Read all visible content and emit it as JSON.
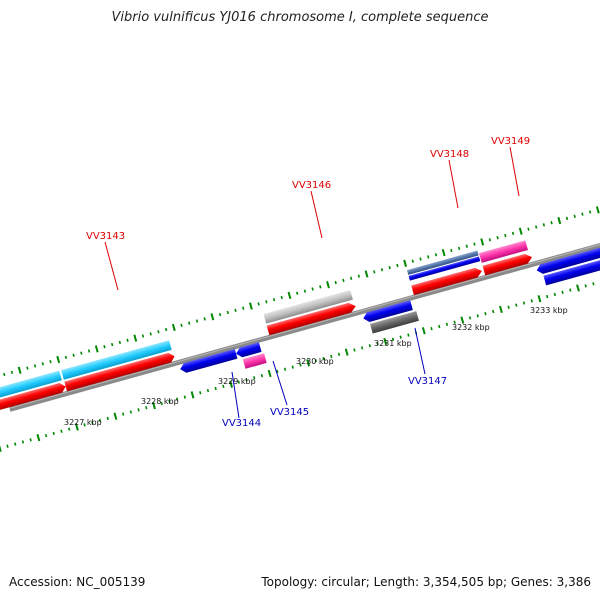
{
  "title": "Vibrio vulnificus YJ016 chromosome I, complete sequence",
  "footer": {
    "accession": "Accession: NC_005139",
    "summary": "Topology: circular; Length: 3,354,505 bp; Genes: 3,386"
  },
  "colors": {
    "backbone": "#8a8a8a",
    "forward_cds": "#ff0000",
    "reverse_cds": "#0000ee",
    "cyan_feature": "#22ccff",
    "pink_feature": "#ff33aa",
    "grey_feature": "#c0c0c0",
    "dark_grey_feature": "#666666",
    "steel_feature": "#5577aa",
    "ticks": "#008800",
    "label_forward": "#dd0000",
    "label_reverse": "#0000bb"
  },
  "scale_labels": [
    {
      "name": "tick-label-3227",
      "text": "3227 kbp"
    },
    {
      "name": "tick-label-3228",
      "text": "3228 kbp"
    },
    {
      "name": "tick-label-3229",
      "text": "3229 kbp"
    },
    {
      "name": "tick-label-3230",
      "text": "3230 kbp"
    },
    {
      "name": "tick-label-3231",
      "text": "3231 kbp"
    },
    {
      "name": "tick-label-3232",
      "text": "3232 kbp"
    },
    {
      "name": "tick-label-3233",
      "text": "3233 kbp"
    }
  ],
  "gene_labels": [
    {
      "name": "gene-label-vv3143",
      "text": "VV3143",
      "strand": "forward"
    },
    {
      "name": "gene-label-vv3144",
      "text": "VV3144",
      "strand": "reverse"
    },
    {
      "name": "gene-label-vv3145",
      "text": "VV3145",
      "strand": "reverse"
    },
    {
      "name": "gene-label-vv3146",
      "text": "VV3146",
      "strand": "forward"
    },
    {
      "name": "gene-label-vv3147",
      "text": "VV3147",
      "strand": "reverse"
    },
    {
      "name": "gene-label-vv3148",
      "text": "VV3148",
      "strand": "forward"
    },
    {
      "name": "gene-label-vv3149",
      "text": "VV3149",
      "strand": "forward"
    }
  ]
}
